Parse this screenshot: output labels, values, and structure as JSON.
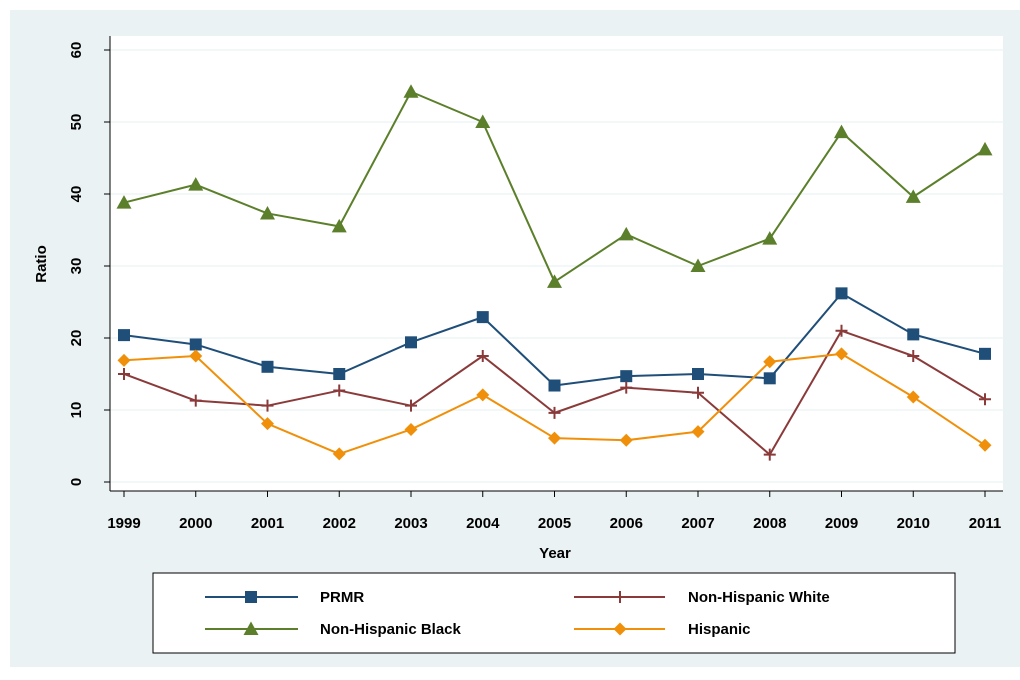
{
  "chart_data": {
    "type": "line",
    "title": "",
    "xlabel": "Year",
    "ylabel": "Ratio",
    "x": [
      1999,
      2000,
      2001,
      2002,
      2003,
      2004,
      2005,
      2006,
      2007,
      2008,
      2009,
      2010,
      2011
    ],
    "xticks": [
      "1999",
      "2000",
      "2001",
      "2002",
      "2003",
      "2004",
      "2005",
      "2006",
      "2007",
      "2008",
      "2009",
      "2010",
      "2011"
    ],
    "yticks": [
      "0",
      "10",
      "20",
      "30",
      "40",
      "50",
      "60"
    ],
    "ylim": [
      0,
      60
    ],
    "grid": true,
    "legend_position": "bottom",
    "series": [
      {
        "name": "PRMR",
        "marker": "square",
        "color": "#1f4e79",
        "values": [
          20.4,
          19.1,
          16.0,
          15.0,
          19.4,
          22.9,
          13.4,
          14.7,
          15.0,
          14.4,
          26.2,
          20.5,
          17.8
        ]
      },
      {
        "name": "Non-Hispanic White",
        "marker": "plus",
        "color": "#8b3a3a",
        "values": [
          15.0,
          11.3,
          10.6,
          12.7,
          10.6,
          17.5,
          9.6,
          13.1,
          12.4,
          3.8,
          21.0,
          17.5,
          11.5
        ]
      },
      {
        "name": "Non-Hispanic Black",
        "marker": "triangle",
        "color": "#5b7f2a",
        "values": [
          38.8,
          41.3,
          37.3,
          35.5,
          54.2,
          50.0,
          27.8,
          34.4,
          30.0,
          33.8,
          48.6,
          39.6,
          46.2
        ]
      },
      {
        "name": "Hispanic",
        "marker": "diamond",
        "color": "#f0900a",
        "values": [
          16.9,
          17.5,
          8.1,
          3.9,
          7.3,
          12.1,
          6.1,
          5.8,
          7.0,
          16.7,
          17.8,
          11.8,
          5.1
        ]
      }
    ]
  }
}
